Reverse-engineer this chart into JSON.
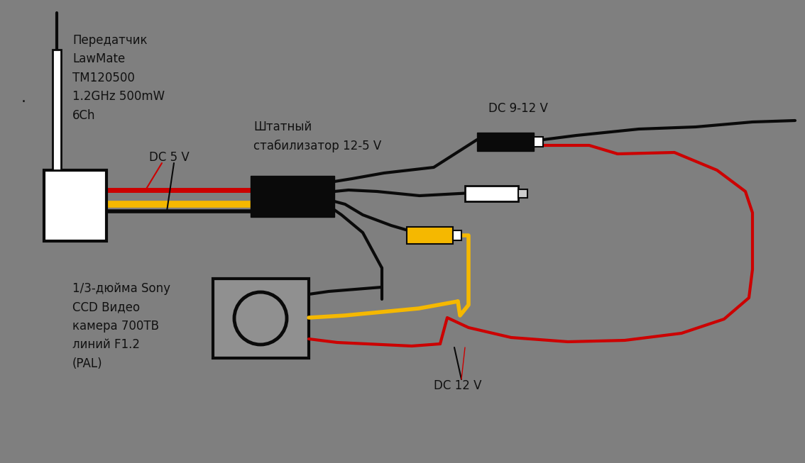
{
  "bg": "#7f7f7f",
  "black": "#0a0a0a",
  "red": "#cc0000",
  "yellow": "#f5b800",
  "white": "#ffffff",
  "text_color": "#111111",
  "lbl_transmitter": "Передатчик\nLawMate\nТМ120500\n1.2GHz 500mW\n6Ch",
  "lbl_dc5v": "DC 5 V",
  "lbl_stabilizer": "Штатный\nстабилизатор 12-5 V",
  "lbl_dc912v": "DC 9-12 V",
  "lbl_dc12v": "DC 12 V",
  "lbl_camera": "1/3-дюйма Sony\nCCD Видео\nкамера 700ТВ\nлиний F1.2\n(PAL)",
  "dot": "."
}
